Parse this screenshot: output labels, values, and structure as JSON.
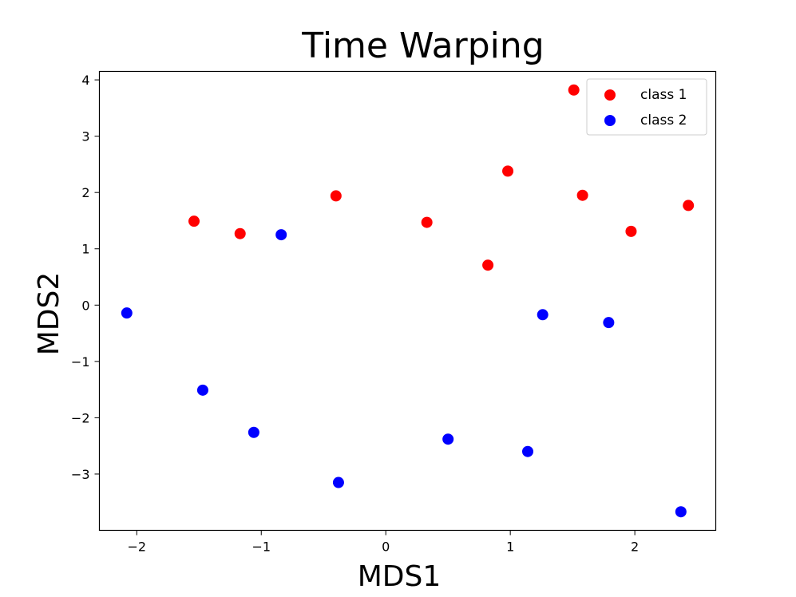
{
  "chart_data": {
    "type": "scatter",
    "title": "Time Warping",
    "xlabel": "MDS1",
    "ylabel": "MDS2",
    "xlim": [
      -2.3,
      2.65
    ],
    "ylim": [
      -4.0,
      4.15
    ],
    "xticks": [
      -2,
      -1,
      0,
      1,
      2
    ],
    "xtick_labels": [
      "−2",
      "−1",
      "0",
      "1",
      "2"
    ],
    "yticks": [
      -3,
      -2,
      -1,
      0,
      1,
      2,
      3,
      4
    ],
    "ytick_labels": [
      "−3",
      "−2",
      "−1",
      "0",
      "1",
      "2",
      "3",
      "4"
    ],
    "grid": false,
    "legend_position": "top-right",
    "series": [
      {
        "name": "class 1",
        "color": "#ff0000",
        "points": [
          [
            -1.54,
            1.49
          ],
          [
            -1.17,
            1.27
          ],
          [
            -0.4,
            1.94
          ],
          [
            0.33,
            1.47
          ],
          [
            0.82,
            0.71
          ],
          [
            0.98,
            2.38
          ],
          [
            1.51,
            3.82
          ],
          [
            1.58,
            1.95
          ],
          [
            1.97,
            1.31
          ],
          [
            2.43,
            1.77
          ]
        ]
      },
      {
        "name": "class 2",
        "color": "#0000ff",
        "points": [
          [
            -2.08,
            -0.14
          ],
          [
            -1.47,
            -1.51
          ],
          [
            -1.06,
            -2.26
          ],
          [
            -0.84,
            1.25
          ],
          [
            -0.38,
            -3.15
          ],
          [
            0.5,
            -2.38
          ],
          [
            1.14,
            -2.6
          ],
          [
            1.26,
            -0.17
          ],
          [
            1.79,
            -0.31
          ],
          [
            2.37,
            -3.67
          ]
        ]
      }
    ]
  }
}
